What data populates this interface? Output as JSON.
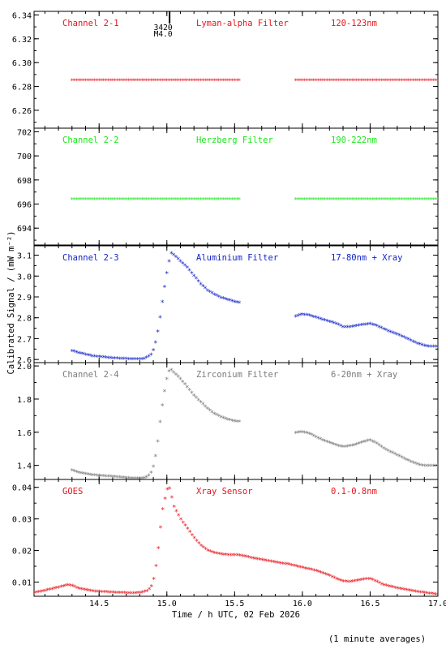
{
  "chart_data": {
    "type": "scatter",
    "xlabel": "Time / h UTC, 02 Feb 2026",
    "ylabel": "Calibrated Signal / (mW m⁻²)",
    "footnote": "(1 minute averages)",
    "xlim": [
      14.02,
      17.0
    ],
    "xticks": [
      "14.5",
      "15.0",
      "15.5",
      "16.0",
      "16.5",
      "17.0"
    ],
    "flare_marker": {
      "x": 15.02,
      "label1": "3420",
      "label2": "M4.0"
    },
    "data_gap": [
      15.56,
      15.94
    ],
    "panels": [
      {
        "name": "Channel 2-1",
        "filter": "Lyman-alpha Filter",
        "band": "120-123nm",
        "color": "#e8141b",
        "ylim": [
          6.245,
          6.343
        ],
        "yticks": [
          "6.26",
          "6.28",
          "6.30",
          "6.32",
          "6.34"
        ],
        "series": [
          {
            "x": [
              14.3,
              15.55
            ],
            "y": [
              6.285,
              6.285
            ]
          },
          {
            "x": [
              15.95,
              17.0
            ],
            "y": [
              6.285,
              6.285
            ]
          }
        ]
      },
      {
        "name": "Channel 2-2",
        "filter": "Herzberg Filter",
        "band": "190-222nm",
        "color": "#18e818",
        "ylim": [
          692.6,
          702.3
        ],
        "yticks": [
          "694",
          "696",
          "698",
          "700",
          "702"
        ],
        "series": [
          {
            "x": [
              14.3,
              15.55
            ],
            "y": [
              696.4,
              696.4
            ]
          },
          {
            "x": [
              15.95,
              17.0
            ],
            "y": [
              696.4,
              696.4
            ]
          }
        ]
      },
      {
        "name": "Channel 2-3",
        "filter": "Aluminium Filter",
        "band": "17-80nm + Xray",
        "color": "#1424c8",
        "ylim": [
          2.585,
          3.145
        ],
        "yticks": [
          "2.6",
          "2.7",
          "2.8",
          "2.9",
          "3.0",
          "3.1"
        ],
        "series": [
          {
            "x": [
              14.3,
              14.35,
              14.45,
              14.6,
              14.75,
              14.82,
              14.86,
              14.89,
              14.91,
              14.93,
              14.95,
              14.97,
              14.99,
              15.01,
              15.03,
              15.05,
              15.1,
              15.15,
              15.2,
              15.25,
              15.3,
              15.35,
              15.4,
              15.45,
              15.5,
              15.55
            ],
            "y": [
              2.64,
              2.63,
              2.615,
              2.605,
              2.6,
              2.6,
              2.61,
              2.625,
              2.66,
              2.72,
              2.8,
              2.89,
              2.975,
              3.05,
              3.11,
              3.1,
              3.07,
              3.04,
              3.0,
              2.96,
              2.93,
              2.91,
              2.895,
              2.885,
              2.875,
              2.87
            ]
          },
          {
            "x": [
              15.95,
              16.0,
              16.05,
              16.1,
              16.15,
              16.2,
              16.25,
              16.3,
              16.35,
              16.4,
              16.45,
              16.5,
              16.55,
              16.6,
              16.65,
              16.7,
              16.75,
              16.8,
              16.85,
              16.9,
              16.95,
              17.0
            ],
            "y": [
              2.805,
              2.815,
              2.81,
              2.8,
              2.79,
              2.78,
              2.77,
              2.755,
              2.755,
              2.76,
              2.765,
              2.77,
              2.76,
              2.745,
              2.73,
              2.72,
              2.705,
              2.69,
              2.675,
              2.665,
              2.66,
              2.66
            ]
          }
        ]
      },
      {
        "name": "Channel 2-4",
        "filter": "Zirconium Filter",
        "band": "6-20nm + Xray",
        "color": "#7a7a7a",
        "ylim": [
          1.315,
          2.02
        ],
        "yticks": [
          "1.4",
          "1.6",
          "1.8",
          "2.0"
        ],
        "series": [
          {
            "x": [
              14.3,
              14.35,
              14.45,
              14.6,
              14.75,
              14.82,
              14.86,
              14.89,
              14.91,
              14.93,
              14.95,
              14.97,
              14.99,
              15.01,
              15.03,
              15.05,
              15.1,
              15.15,
              15.2,
              15.25,
              15.3,
              15.35,
              15.4,
              15.45,
              15.5,
              15.55
            ],
            "y": [
              1.37,
              1.355,
              1.34,
              1.33,
              1.32,
              1.32,
              1.33,
              1.36,
              1.42,
              1.52,
              1.66,
              1.78,
              1.88,
              1.96,
              1.975,
              1.96,
              1.92,
              1.87,
              1.82,
              1.78,
              1.74,
              1.71,
              1.69,
              1.675,
              1.665,
              1.66
            ]
          },
          {
            "x": [
              15.95,
              16.0,
              16.05,
              16.1,
              16.15,
              16.2,
              16.25,
              16.3,
              16.35,
              16.4,
              16.45,
              16.5,
              16.55,
              16.6,
              16.65,
              16.7,
              16.75,
              16.8,
              16.85,
              16.9,
              16.95,
              17.0
            ],
            "y": [
              1.595,
              1.6,
              1.59,
              1.57,
              1.55,
              1.535,
              1.52,
              1.51,
              1.515,
              1.525,
              1.54,
              1.55,
              1.53,
              1.5,
              1.48,
              1.46,
              1.44,
              1.42,
              1.405,
              1.395,
              1.395,
              1.395
            ]
          }
        ]
      },
      {
        "name": "GOES",
        "filter": "Xray Sensor",
        "band": "0.1-0.8nm",
        "color": "#e8141b",
        "ylim": [
          0.0055,
          0.0425
        ],
        "yticks": [
          "0.01",
          "0.02",
          "0.03",
          "0.04"
        ],
        "series": [
          {
            "x": [
              14.02,
              14.1,
              14.2,
              14.27,
              14.3,
              14.35,
              14.45,
              14.6,
              14.75,
              14.82,
              14.86,
              14.89,
              14.91,
              14.93,
              14.95,
              14.97,
              14.99,
              15.0,
              15.01,
              15.02,
              15.03,
              15.05,
              15.1,
              15.15,
              15.2,
              15.25,
              15.3,
              15.35,
              15.4,
              15.45,
              15.5,
              15.55,
              15.6,
              15.7,
              15.8,
              15.9,
              16.0,
              16.1,
              16.2,
              16.25,
              16.3,
              16.35,
              16.4,
              16.45,
              16.5,
              16.55,
              16.6,
              16.7,
              16.8,
              16.9,
              17.0
            ],
            "y": [
              0.0065,
              0.0072,
              0.0082,
              0.009,
              0.0088,
              0.0078,
              0.007,
              0.0066,
              0.0064,
              0.0066,
              0.0072,
              0.0088,
              0.012,
              0.018,
              0.026,
              0.033,
              0.037,
              0.039,
              0.04,
              0.0395,
              0.038,
              0.034,
              0.03,
              0.027,
              0.024,
              0.0215,
              0.02,
              0.0192,
              0.0187,
              0.0185,
              0.0185,
              0.0183,
              0.0178,
              0.017,
              0.0162,
              0.0155,
              0.0145,
              0.0135,
              0.012,
              0.011,
              0.0102,
              0.01,
              0.0104,
              0.0108,
              0.011,
              0.01,
              0.009,
              0.008,
              0.0072,
              0.0065,
              0.006
            ]
          }
        ]
      }
    ]
  }
}
